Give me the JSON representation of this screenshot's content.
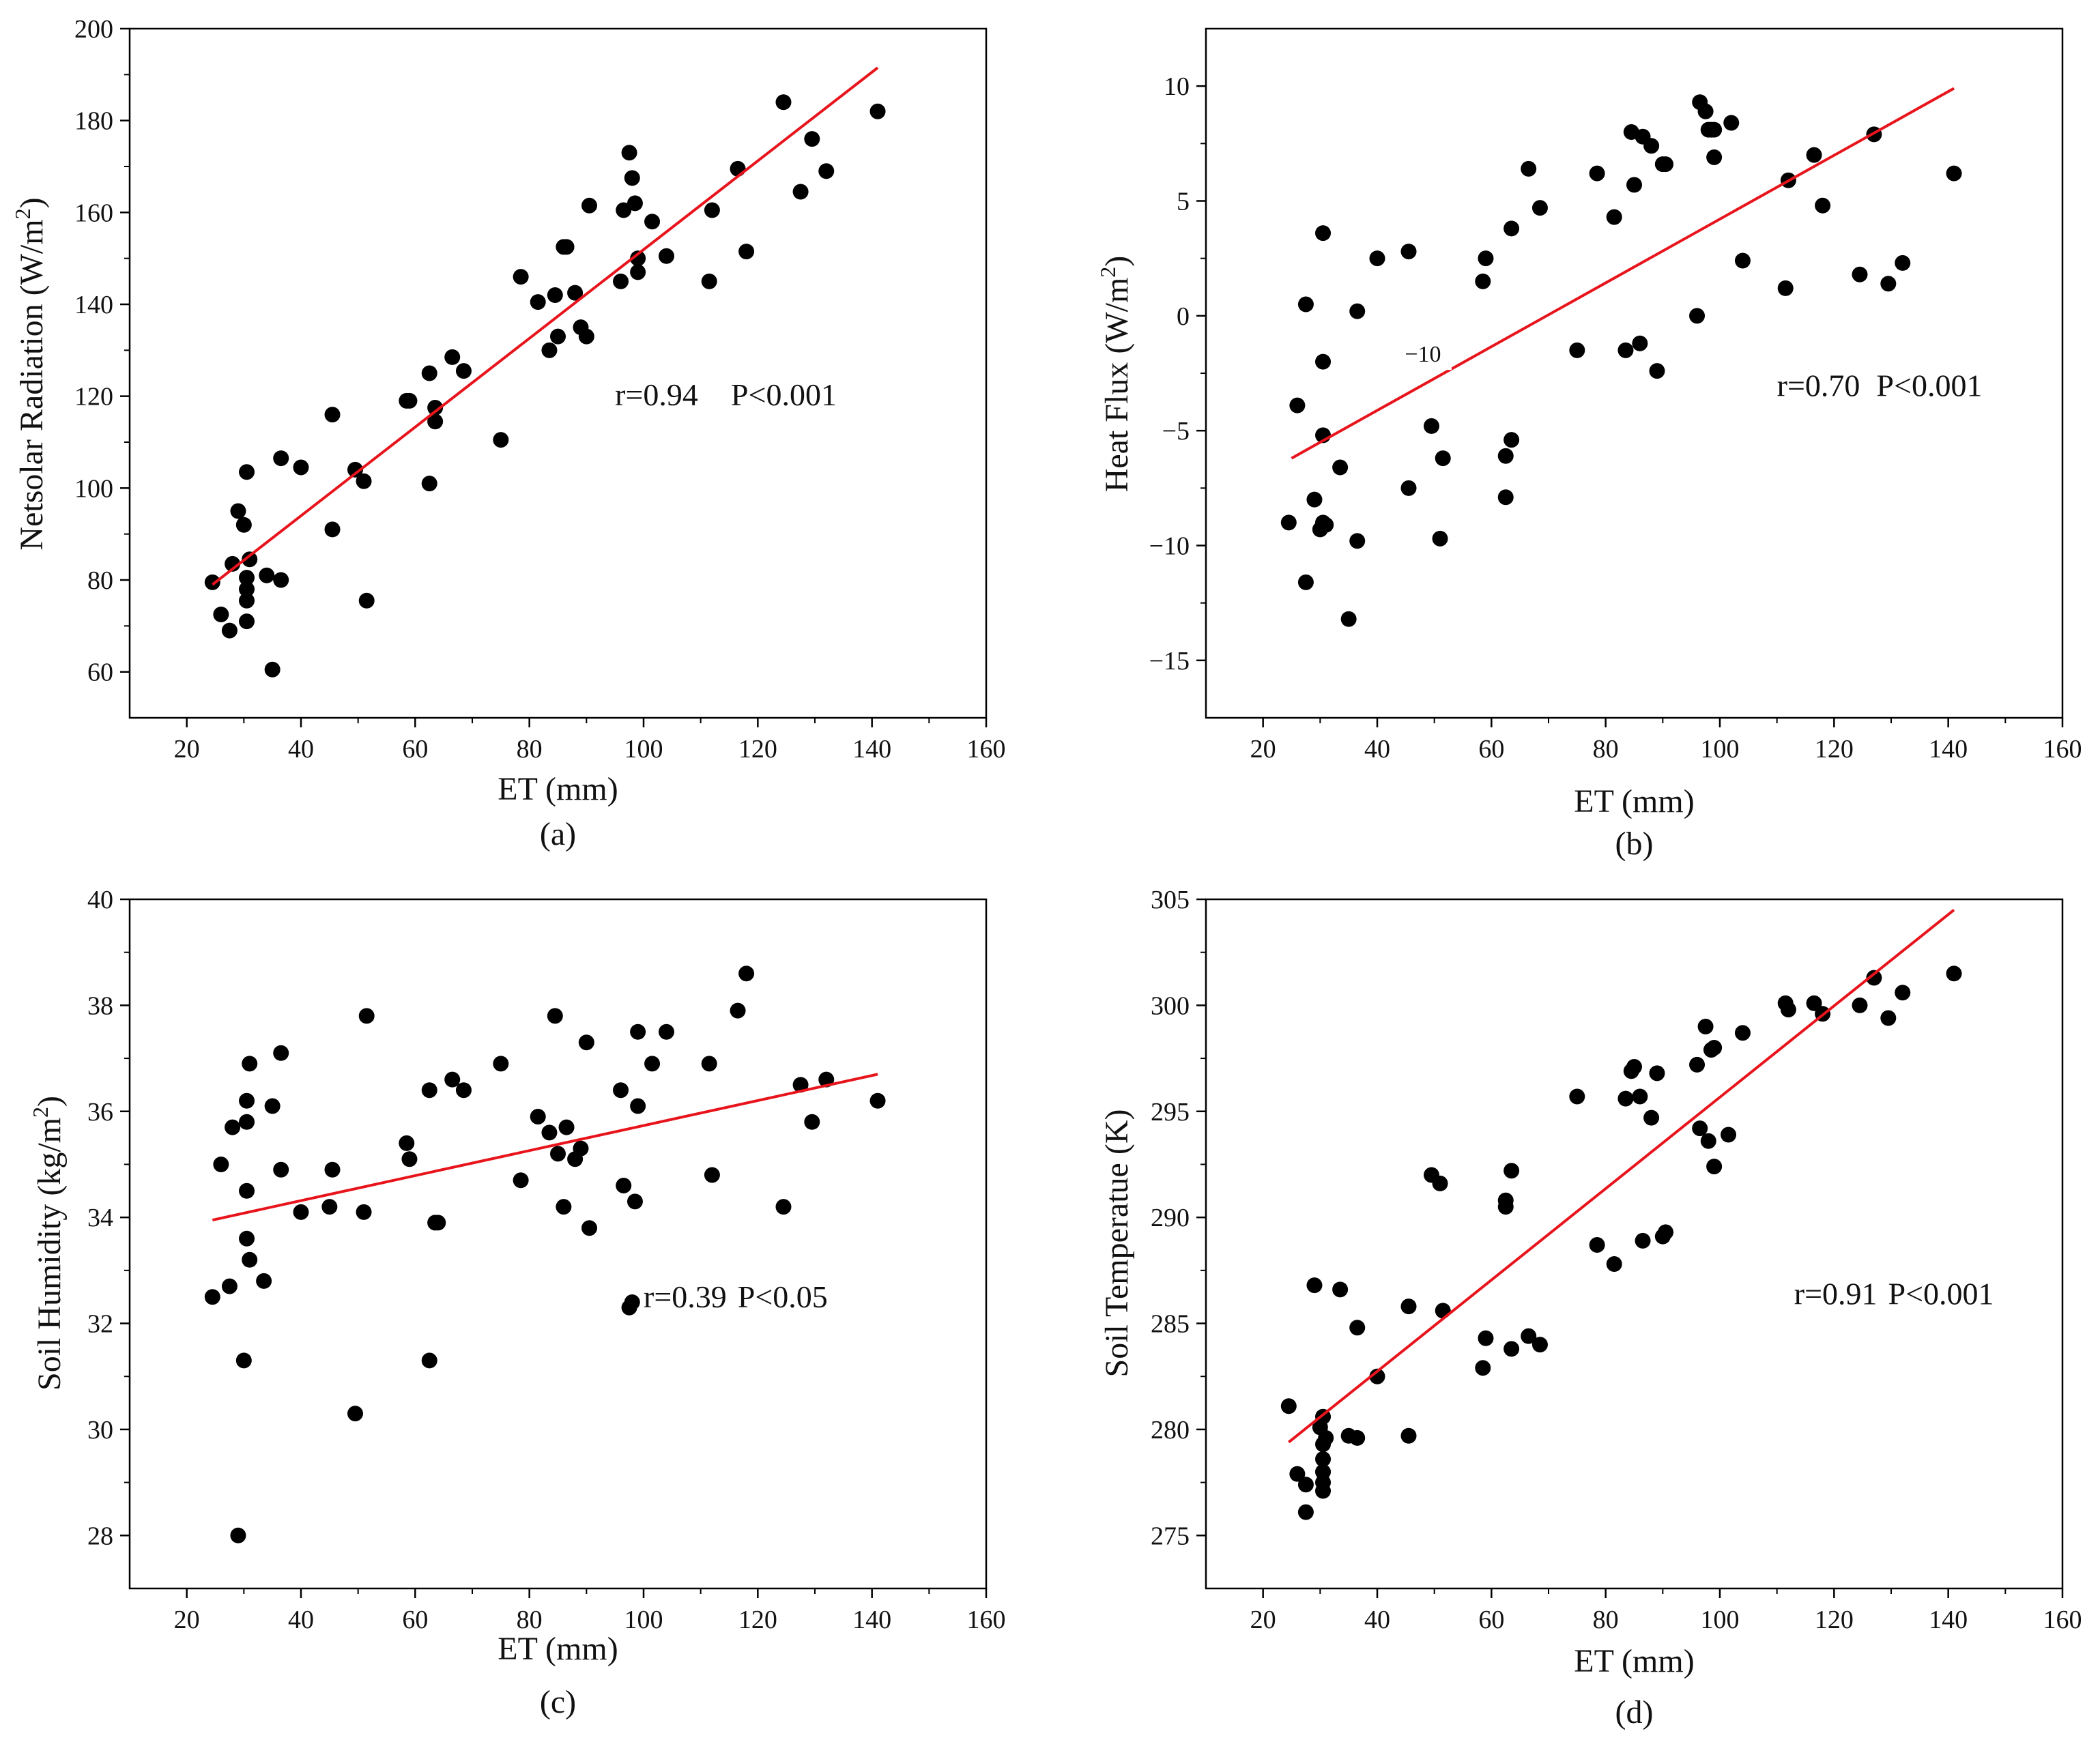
{
  "chart_data": [
    {
      "id": "a",
      "type": "scatter",
      "panel_label": "(a)",
      "xlabel": "ET (mm)",
      "ylabel": "Netsolar Radiation (W/m2)",
      "ylabel_main": "Netsolar Radiation (W/m",
      "ylabel_sup": "2",
      "ylabel_end": ")",
      "xlim": [
        10,
        160
      ],
      "ylim": [
        50,
        200
      ],
      "xticks": [
        20,
        40,
        60,
        80,
        100,
        120,
        140,
        160
      ],
      "yticks": [
        60,
        80,
        100,
        120,
        140,
        160,
        180,
        200
      ],
      "stat_r": "r=0.94",
      "stat_p": "P<0.001",
      "stat_pos": [
        95,
        118
      ],
      "stat_gap": 12,
      "inline_label": "",
      "fit": {
        "x1": 24.5,
        "y1": 79,
        "x2": 141,
        "y2": 191.5
      },
      "points": [
        [
          24.5,
          79.5
        ],
        [
          26,
          72.5
        ],
        [
          27.5,
          69
        ],
        [
          28,
          83.5
        ],
        [
          29,
          95
        ],
        [
          30,
          92
        ],
        [
          30.5,
          103.5
        ],
        [
          30.5,
          80.5
        ],
        [
          30.5,
          78
        ],
        [
          30.5,
          75.5
        ],
        [
          30.5,
          71
        ],
        [
          31,
          84.5
        ],
        [
          34,
          81
        ],
        [
          35,
          60.5
        ],
        [
          36.5,
          106.5
        ],
        [
          36.5,
          80
        ],
        [
          40,
          104.5
        ],
        [
          45.5,
          116
        ],
        [
          45.5,
          91
        ],
        [
          49.5,
          104
        ],
        [
          51,
          101.5
        ],
        [
          51.5,
          75.5
        ],
        [
          58.5,
          119
        ],
        [
          59,
          119
        ],
        [
          62.5,
          125
        ],
        [
          62.5,
          101
        ],
        [
          63.5,
          117.5
        ],
        [
          63.5,
          114.5
        ],
        [
          66.5,
          128.5
        ],
        [
          68.5,
          125.5
        ],
        [
          75,
          110.5
        ],
        [
          78.5,
          146
        ],
        [
          81.5,
          140.5
        ],
        [
          83.5,
          130
        ],
        [
          84.5,
          142
        ],
        [
          85,
          133
        ],
        [
          86,
          152.5
        ],
        [
          86.5,
          152.5
        ],
        [
          88,
          142.5
        ],
        [
          89,
          135
        ],
        [
          90,
          133
        ],
        [
          90.5,
          161.5
        ],
        [
          96,
          145
        ],
        [
          96.5,
          160.5
        ],
        [
          97.5,
          173
        ],
        [
          98,
          167.5
        ],
        [
          98.5,
          162
        ],
        [
          99,
          147
        ],
        [
          99,
          150
        ],
        [
          101.5,
          158
        ],
        [
          104,
          150.5
        ],
        [
          111.5,
          145
        ],
        [
          112,
          160.5
        ],
        [
          116.5,
          169.5
        ],
        [
          118,
          151.5
        ],
        [
          124.5,
          184
        ],
        [
          127.5,
          164.5
        ],
        [
          129.5,
          176
        ],
        [
          132,
          169
        ],
        [
          141,
          182
        ]
      ]
    },
    {
      "id": "b",
      "type": "scatter",
      "panel_label": "(b)",
      "xlabel": "ET (mm)",
      "ylabel": "Heat Flux (W/m2)",
      "ylabel_main": "Heat Flux (W/m",
      "ylabel_sup": "2",
      "ylabel_end": ")",
      "xlim": [
        10,
        160
      ],
      "ylim": [
        -17.5,
        12.5
      ],
      "xticks": [
        20,
        40,
        60,
        80,
        100,
        120,
        140,
        160
      ],
      "yticks": [
        -15,
        -10,
        -5,
        0,
        5,
        10
      ],
      "stat_r": "r=0.70",
      "stat_p": "P<0.001",
      "stat_pos": [
        110,
        -3.5
      ],
      "stat_gap": 6,
      "inline_label": "−10",
      "inline_label_pos": [
        48,
        -2
      ],
      "fit": {
        "x1": 25,
        "y1": -6.2,
        "x2": 141,
        "y2": 9.9
      },
      "points": [
        [
          24.5,
          -9
        ],
        [
          26,
          -3.9
        ],
        [
          27.5,
          0.5
        ],
        [
          27.5,
          -11.6
        ],
        [
          29,
          -8
        ],
        [
          30,
          -9.3
        ],
        [
          30.5,
          3.6
        ],
        [
          30.5,
          -9
        ],
        [
          30.5,
          -2
        ],
        [
          30.5,
          -5.2
        ],
        [
          31,
          -9.1
        ],
        [
          33.5,
          -6.6
        ],
        [
          35,
          -13.2
        ],
        [
          36.5,
          0.2
        ],
        [
          36.5,
          -9.8
        ],
        [
          40,
          2.5
        ],
        [
          45.5,
          2.8
        ],
        [
          45.5,
          -7.5
        ],
        [
          49.5,
          -4.8
        ],
        [
          51,
          -9.7
        ],
        [
          51.5,
          -6.2
        ],
        [
          58.5,
          1.5
        ],
        [
          59,
          2.5
        ],
        [
          62.5,
          -7.9
        ],
        [
          62.5,
          -6.1
        ],
        [
          63.5,
          3.8
        ],
        [
          63.5,
          -5.4
        ],
        [
          66.5,
          6.4
        ],
        [
          68.5,
          4.7
        ],
        [
          75,
          -1.5
        ],
        [
          78.5,
          6.2
        ],
        [
          81.5,
          4.3
        ],
        [
          83.5,
          -1.5
        ],
        [
          84.5,
          8
        ],
        [
          85,
          5.7
        ],
        [
          86,
          -1.2
        ],
        [
          86.5,
          7.8
        ],
        [
          88,
          7.4
        ],
        [
          89,
          -2.4
        ],
        [
          90,
          6.6
        ],
        [
          90.5,
          6.6
        ],
        [
          96,
          0
        ],
        [
          96.5,
          9.3
        ],
        [
          97.5,
          8.9
        ],
        [
          98,
          8.1
        ],
        [
          98.5,
          8.1
        ],
        [
          99,
          6.9
        ],
        [
          99,
          8.1
        ],
        [
          102,
          8.4
        ],
        [
          104,
          2.4
        ],
        [
          111.5,
          1.2
        ],
        [
          112,
          5.9
        ],
        [
          116.5,
          7
        ],
        [
          118,
          4.8
        ],
        [
          124.5,
          1.8
        ],
        [
          127,
          7.9
        ],
        [
          129.5,
          1.4
        ],
        [
          132,
          2.3
        ],
        [
          141,
          6.2
        ]
      ]
    },
    {
      "id": "c",
      "type": "scatter",
      "panel_label": "(c)",
      "xlabel": "ET (mm)",
      "ylabel": "Soil Humidity (kg/m2)",
      "ylabel_main": "Soil Humidity (kg/m",
      "ylabel_sup": "2",
      "ylabel_end": ")",
      "xlim": [
        10,
        160
      ],
      "ylim": [
        27,
        40
      ],
      "xticks": [
        20,
        40,
        60,
        80,
        100,
        120,
        140,
        160
      ],
      "yticks": [
        28,
        30,
        32,
        34,
        36,
        38,
        40
      ],
      "stat_r": "r=0.39",
      "stat_p": "P<0.05",
      "stat_pos": [
        100,
        32.3
      ],
      "stat_gap": 4,
      "inline_label": "",
      "fit": {
        "x1": 24.5,
        "y1": 33.95,
        "x2": 141,
        "y2": 36.7
      },
      "points": [
        [
          24.5,
          32.5
        ],
        [
          26,
          35
        ],
        [
          27.5,
          32.7
        ],
        [
          28,
          35.7
        ],
        [
          29,
          28
        ],
        [
          30,
          31.3
        ],
        [
          30.5,
          34.5
        ],
        [
          30.5,
          33.6
        ],
        [
          30.5,
          36.2
        ],
        [
          30.5,
          35.8
        ],
        [
          31,
          36.9
        ],
        [
          31,
          33.2
        ],
        [
          33.5,
          32.8
        ],
        [
          35,
          36.1
        ],
        [
          36.5,
          37.1
        ],
        [
          36.5,
          34.9
        ],
        [
          40,
          34.1
        ],
        [
          45,
          34.2
        ],
        [
          45.5,
          34.9
        ],
        [
          49.5,
          30.3
        ],
        [
          51,
          34.1
        ],
        [
          51.5,
          37.8
        ],
        [
          58.5,
          35.4
        ],
        [
          59,
          35.1
        ],
        [
          62.5,
          36.4
        ],
        [
          62.5,
          31.3
        ],
        [
          63.5,
          33.9
        ],
        [
          64,
          33.9
        ],
        [
          66.5,
          36.6
        ],
        [
          68.5,
          36.4
        ],
        [
          75,
          36.9
        ],
        [
          78.5,
          34.7
        ],
        [
          81.5,
          35.9
        ],
        [
          83.5,
          35.6
        ],
        [
          84.5,
          37.8
        ],
        [
          85,
          35.2
        ],
        [
          86,
          34.2
        ],
        [
          86.5,
          35.7
        ],
        [
          88,
          35.1
        ],
        [
          89,
          35.3
        ],
        [
          90,
          37.3
        ],
        [
          90.5,
          33.8
        ],
        [
          96,
          36.4
        ],
        [
          96.5,
          34.6
        ],
        [
          97.5,
          32.3
        ],
        [
          98,
          32.4
        ],
        [
          98.5,
          34.3
        ],
        [
          99,
          37.5
        ],
        [
          99,
          36.1
        ],
        [
          101.5,
          36.9
        ],
        [
          104,
          37.5
        ],
        [
          111.5,
          36.9
        ],
        [
          112,
          34.8
        ],
        [
          116.5,
          37.9
        ],
        [
          118,
          38.6
        ],
        [
          124.5,
          34.2
        ],
        [
          127.5,
          36.5
        ],
        [
          129.5,
          35.8
        ],
        [
          132,
          36.6
        ],
        [
          141,
          36.2
        ]
      ]
    },
    {
      "id": "d",
      "type": "scatter",
      "panel_label": "(d)",
      "xlabel": "ET (mm)",
      "ylabel": "Soil Temperatue (K)",
      "ylabel_main": "Soil Temperatue (K)",
      "ylabel_sup": "",
      "ylabel_end": "",
      "xlim": [
        10,
        160
      ],
      "ylim": [
        272.5,
        305
      ],
      "xticks": [
        20,
        40,
        60,
        80,
        100,
        120,
        140,
        160
      ],
      "yticks": [
        275,
        280,
        285,
        290,
        295,
        300,
        305
      ],
      "stat_r": "r=0.91",
      "stat_p": "P<0.001",
      "stat_pos": [
        113,
        285.9
      ],
      "stat_gap": 4,
      "inline_label": "",
      "fit": {
        "x1": 24.5,
        "y1": 279.4,
        "x2": 141,
        "y2": 304.5
      },
      "points": [
        [
          24.5,
          281.1
        ],
        [
          26,
          277.9
        ],
        [
          27.5,
          277.4
        ],
        [
          27.5,
          276.1
        ],
        [
          29,
          286.8
        ],
        [
          30,
          280.1
        ],
        [
          30.5,
          280.6
        ],
        [
          30.5,
          279.3
        ],
        [
          30.5,
          278.6
        ],
        [
          30.5,
          278
        ],
        [
          30.5,
          277.5
        ],
        [
          30.5,
          277.1
        ],
        [
          31,
          279.6
        ],
        [
          33.5,
          286.6
        ],
        [
          35,
          279.7
        ],
        [
          36.5,
          279.6
        ],
        [
          36.5,
          284.8
        ],
        [
          40,
          282.5
        ],
        [
          45.5,
          285.8
        ],
        [
          45.5,
          279.7
        ],
        [
          49.5,
          292
        ],
        [
          51,
          291.6
        ],
        [
          51.5,
          285.6
        ],
        [
          58.5,
          282.9
        ],
        [
          59,
          284.3
        ],
        [
          62.5,
          290.8
        ],
        [
          62.5,
          290.5
        ],
        [
          63.5,
          292.2
        ],
        [
          63.5,
          283.8
        ],
        [
          66.5,
          284.4
        ],
        [
          68.5,
          284
        ],
        [
          75,
          295.7
        ],
        [
          78.5,
          288.7
        ],
        [
          81.5,
          287.8
        ],
        [
          83.5,
          295.6
        ],
        [
          84.5,
          296.9
        ],
        [
          85,
          297.1
        ],
        [
          86,
          295.7
        ],
        [
          86.5,
          288.9
        ],
        [
          88,
          294.7
        ],
        [
          89,
          296.8
        ],
        [
          90,
          289.1
        ],
        [
          90.5,
          289.3
        ],
        [
          96,
          297.2
        ],
        [
          96.5,
          294.2
        ],
        [
          97.5,
          299
        ],
        [
          98,
          293.6
        ],
        [
          98.5,
          297.9
        ],
        [
          99,
          298
        ],
        [
          99,
          292.4
        ],
        [
          101.5,
          293.9
        ],
        [
          104,
          298.7
        ],
        [
          111.5,
          300.1
        ],
        [
          112,
          299.8
        ],
        [
          116.5,
          300.1
        ],
        [
          118,
          299.6
        ],
        [
          124.5,
          300
        ],
        [
          127,
          301.3
        ],
        [
          129.5,
          299.4
        ],
        [
          132,
          300.6
        ],
        [
          141,
          301.5
        ]
      ]
    }
  ],
  "style": {
    "point_color": "#000000",
    "fit_color": "#e8141c",
    "axis_color": "#000000"
  }
}
